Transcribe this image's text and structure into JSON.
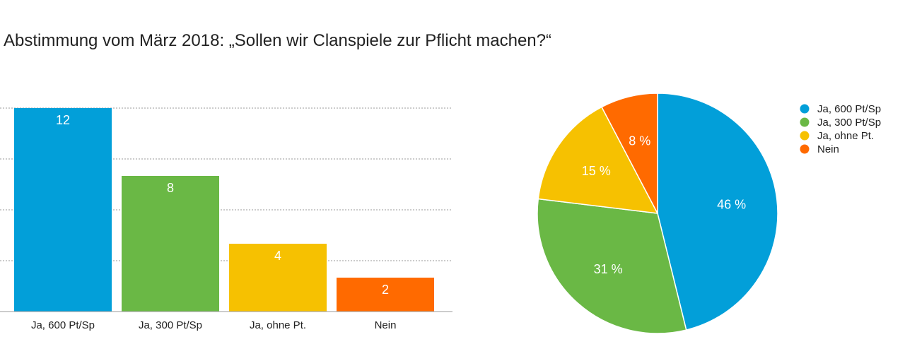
{
  "title": "Abstimmung vom März 2018: „Sollen wir Clanspiele zur Pflicht machen?“",
  "chart_data": [
    {
      "type": "bar",
      "categories": [
        "Ja, 600 Pt/Sp",
        "Ja, 300 Pt/Sp",
        "Ja, ohne Pt.",
        "Nein"
      ],
      "values": [
        12,
        8,
        4,
        2
      ],
      "value_labels": [
        "12",
        "8",
        "4",
        "2"
      ],
      "colors": [
        "#029fd9",
        "#6ab845",
        "#f6c101",
        "#ff6a00"
      ],
      "ylim": [
        0,
        12
      ],
      "grid": true,
      "grid_step": 3
    },
    {
      "type": "pie",
      "categories": [
        "Ja, 600 Pt/Sp",
        "Ja, 300 Pt/Sp",
        "Ja, ohne Pt.",
        "Nein"
      ],
      "values": [
        12,
        8,
        4,
        2
      ],
      "percent_labels": [
        "46 %",
        "31 %",
        "15 %",
        "8 %"
      ],
      "colors": [
        "#029fd9",
        "#6ab845",
        "#f6c101",
        "#ff6a00"
      ],
      "legend": [
        "Ja, 600 Pt/Sp",
        "Ja, 300 Pt/Sp",
        "Ja, ohne Pt.",
        "Nein"
      ],
      "legend_position": "top-right"
    }
  ]
}
